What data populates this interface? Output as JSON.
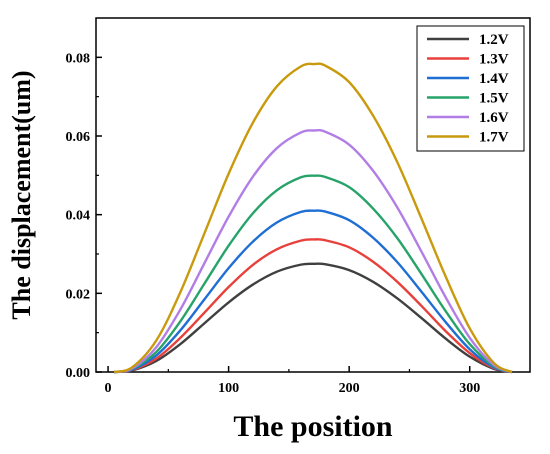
{
  "chart_data": {
    "type": "line",
    "xlabel": "The position",
    "ylabel": "The displacement(um)",
    "xlim": [
      -10,
      350
    ],
    "ylim": [
      0,
      0.09
    ],
    "xticks": [
      0,
      100,
      200,
      300
    ],
    "xtick_labels": [
      "0",
      "100",
      "200",
      "300"
    ],
    "yticks": [
      0,
      0.02,
      0.04,
      0.06,
      0.08
    ],
    "ytick_labels": [
      "0.00",
      "0.02",
      "0.04",
      "0.06",
      "0.08"
    ],
    "grid": false,
    "legend_position": "top-right",
    "x": [
      5,
      20,
      40,
      60,
      80,
      100,
      120,
      140,
      160,
      171,
      180,
      200,
      220,
      240,
      260,
      280,
      300,
      320,
      335
    ],
    "series": [
      {
        "name": "1.2V",
        "color": "#404040",
        "values": [
          0,
          0.0004,
          0.0028,
          0.0071,
          0.0124,
          0.0177,
          0.0222,
          0.0255,
          0.0273,
          0.0275,
          0.0274,
          0.0259,
          0.0229,
          0.0187,
          0.0137,
          0.0085,
          0.0039,
          0.0008,
          0
        ]
      },
      {
        "name": "1.3V",
        "color": "#e8413c",
        "values": [
          0,
          0.0005,
          0.0034,
          0.0087,
          0.0151,
          0.0216,
          0.0272,
          0.0312,
          0.0334,
          0.0337,
          0.0335,
          0.0317,
          0.028,
          0.0229,
          0.0168,
          0.0104,
          0.0048,
          0.001,
          0
        ]
      },
      {
        "name": "1.4V",
        "color": "#1f6ed4",
        "values": [
          0,
          0.0006,
          0.0042,
          0.0106,
          0.0185,
          0.0264,
          0.0331,
          0.038,
          0.0407,
          0.041,
          0.0408,
          0.0386,
          0.0341,
          0.0279,
          0.0204,
          0.0127,
          0.0058,
          0.0012,
          0
        ]
      },
      {
        "name": "1.5V",
        "color": "#27a36a",
        "values": [
          0,
          0.0008,
          0.0051,
          0.0129,
          0.0225,
          0.0321,
          0.0403,
          0.0462,
          0.0495,
          0.0499,
          0.0496,
          0.047,
          0.0415,
          0.034,
          0.0249,
          0.0155,
          0.0071,
          0.0015,
          0
        ]
      },
      {
        "name": "1.6V",
        "color": "#b27ee6",
        "values": [
          0,
          0.0009,
          0.0063,
          0.0159,
          0.0277,
          0.0395,
          0.0496,
          0.0569,
          0.0609,
          0.0614,
          0.0611,
          0.0578,
          0.0511,
          0.0418,
          0.0306,
          0.019,
          0.0087,
          0.0018,
          0
        ]
      },
      {
        "name": "1.7V",
        "color": "#c99a0e",
        "values": [
          0,
          0.0012,
          0.008,
          0.0203,
          0.0353,
          0.0504,
          0.0633,
          0.0726,
          0.0777,
          0.0783,
          0.0779,
          0.0737,
          0.0651,
          0.0533,
          0.039,
          0.0243,
          0.0111,
          0.0023,
          0
        ]
      }
    ]
  }
}
